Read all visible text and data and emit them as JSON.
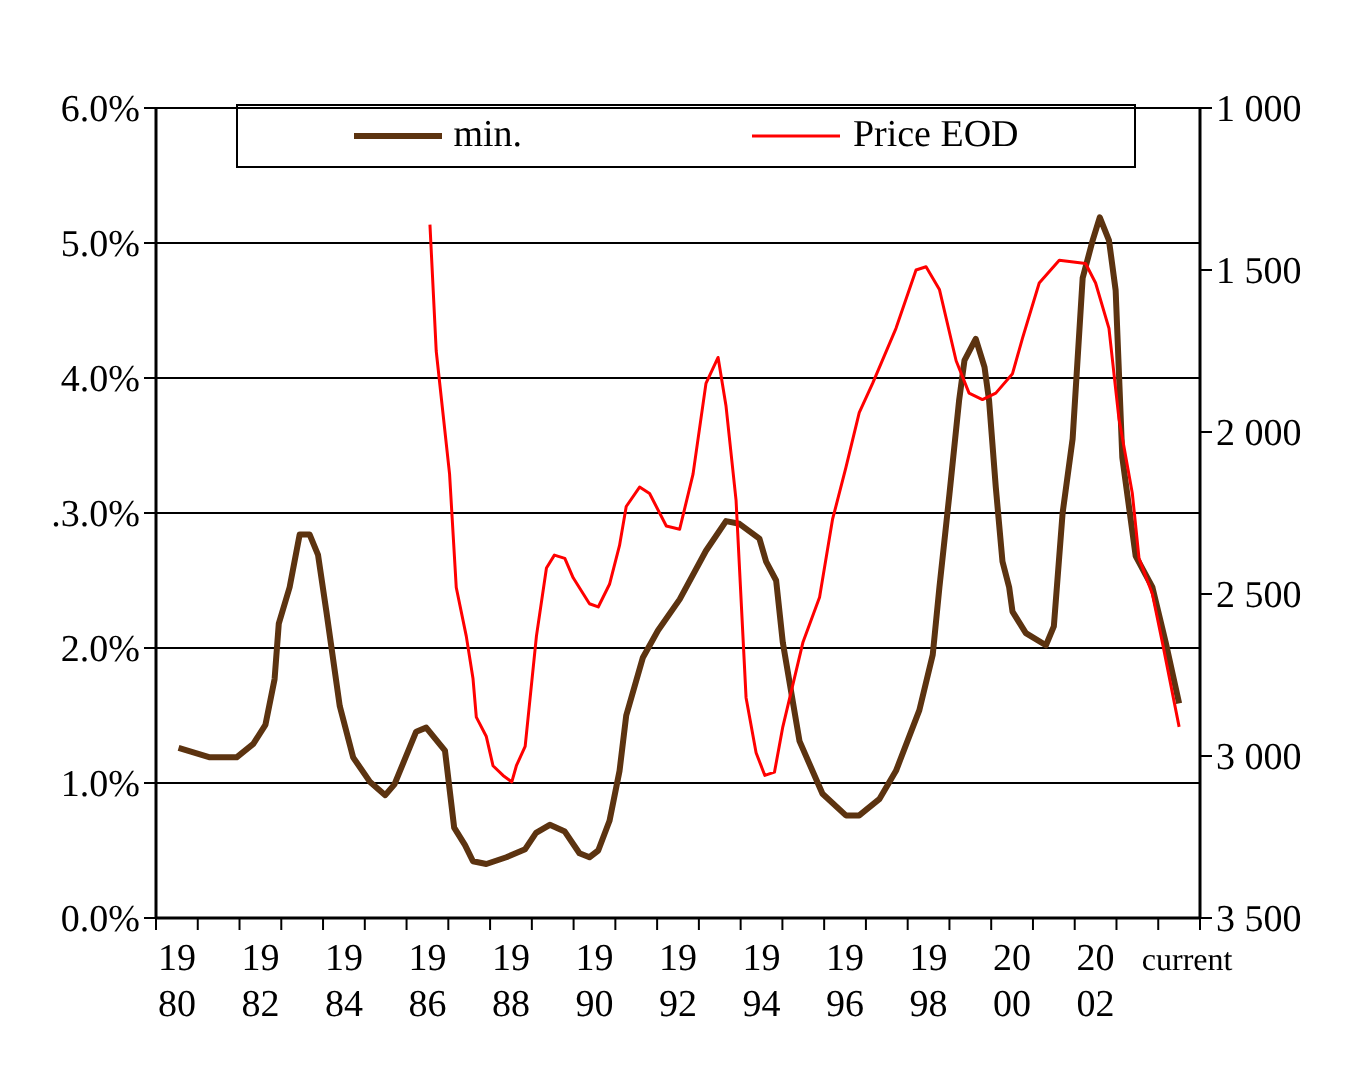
{
  "chart_data": {
    "type": "line",
    "xlim": [
      1979.5,
      2004.5
    ],
    "xticks": [
      {
        "value": 1979.5,
        "label": null
      },
      {
        "value": 1980.5,
        "label": null
      },
      {
        "value": 1981.5,
        "label": null
      },
      {
        "value": 1982.5,
        "label": null
      },
      {
        "value": 1983.5,
        "label": null
      },
      {
        "value": 1984.5,
        "label": null
      },
      {
        "value": 1985.5,
        "label": null
      },
      {
        "value": 1986.5,
        "label": null
      },
      {
        "value": 1987.5,
        "label": null
      },
      {
        "value": 1988.5,
        "label": null
      },
      {
        "value": 1989.5,
        "label": null
      },
      {
        "value": 1990.5,
        "label": null
      },
      {
        "value": 1991.5,
        "label": null
      },
      {
        "value": 1992.5,
        "label": null
      },
      {
        "value": 1993.5,
        "label": null
      },
      {
        "value": 1994.5,
        "label": null
      },
      {
        "value": 1995.5,
        "label": null
      },
      {
        "value": 1996.5,
        "label": null
      },
      {
        "value": 1997.5,
        "label": null
      },
      {
        "value": 1998.5,
        "label": null
      },
      {
        "value": 1999.5,
        "label": null
      },
      {
        "value": 2000.5,
        "label": null
      },
      {
        "value": 2001.5,
        "label": null
      },
      {
        "value": 2002.5,
        "label": null
      },
      {
        "value": 2003.5,
        "label": null
      },
      {
        "value": 2004.5,
        "label": null
      },
      1980,
      1982,
      1984,
      1986,
      1988,
      1990,
      1992,
      1994,
      1996,
      1998,
      2000,
      2002,
      {
        "value": 2004,
        "label": "current"
      }
    ],
    "ylim": [
      0,
      6
    ],
    "yticks": [
      {
        "value": 0,
        "label": "0.0%"
      },
      {
        "value": 1,
        "label": "1.0%"
      },
      {
        "value": 2,
        "label": "2.0%"
      },
      {
        "value": 3,
        "label": ".3.0%"
      },
      {
        "value": 4,
        "label": "4.0%"
      },
      {
        "value": 5,
        "label": "5.0%"
      },
      {
        "value": 6,
        "label": "6.0%"
      }
    ],
    "y2lim": [
      3500,
      1000
    ],
    "y2ticks": [
      {
        "value": 1000,
        "label": "1 000"
      },
      {
        "value": 1500,
        "label": "1 500"
      },
      {
        "value": 2000,
        "label": "2 000"
      },
      {
        "value": 2500,
        "label": "2 500"
      },
      {
        "value": 3000,
        "label": "3 000"
      },
      {
        "value": 3500,
        "label": "3 500"
      }
    ],
    "grid": "y",
    "legend": "top",
    "marker": "none",
    "series": [
      {
        "name": "min.",
        "color": "#5c3310",
        "x": [
          1980.04,
          1980.79,
          1981.43,
          1981.83,
          1982.12,
          1982.34,
          1982.44,
          1982.7,
          1982.94,
          1983.18,
          1983.38,
          1983.58,
          1983.9,
          1984.22,
          1984.62,
          1984.99,
          1985.21,
          1985.73,
          1985.97,
          1986.42,
          1986.64,
          1986.9,
          1987.09,
          1987.41,
          1987.89,
          1988.34,
          1988.6,
          1988.93,
          1989.29,
          1989.64,
          1989.88,
          1990.09,
          1990.36,
          1990.6,
          1990.76,
          1991.16,
          1991.52,
          1992.04,
          1992.67,
          1993.15,
          1993.47,
          1993.95,
          1994.11,
          1994.35,
          1994.51,
          1994.91,
          1995.46,
          1996.02,
          1996.34,
          1996.82,
          1997.22,
          1997.78,
          1998.1,
          1998.26,
          1998.5,
          1998.73,
          1998.86,
          1999.13,
          1999.34,
          1999.45,
          1999.61,
          1999.77,
          1999.93,
          2000.01,
          2000.33,
          2000.81,
          2001.0,
          2001.21,
          2001.45,
          2001.69,
          2001.93,
          2002.1,
          2002.32,
          2002.48,
          2002.64,
          2002.96,
          2003.36,
          2003.68,
          2004.0
        ],
        "values": [
          1.26,
          1.19,
          1.19,
          1.29,
          1.43,
          1.77,
          2.18,
          2.45,
          2.84,
          2.84,
          2.69,
          2.27,
          1.57,
          1.19,
          1.01,
          0.91,
          0.99,
          1.38,
          1.41,
          1.24,
          0.67,
          0.54,
          0.42,
          0.4,
          0.45,
          0.51,
          0.63,
          0.69,
          0.64,
          0.48,
          0.45,
          0.5,
          0.72,
          1.09,
          1.5,
          1.93,
          2.13,
          2.36,
          2.72,
          2.94,
          2.92,
          2.81,
          2.64,
          2.5,
          2.04,
          1.31,
          0.92,
          0.76,
          0.76,
          0.88,
          1.09,
          1.54,
          1.95,
          2.45,
          3.14,
          3.83,
          4.13,
          4.29,
          4.08,
          3.83,
          3.19,
          2.64,
          2.45,
          2.27,
          2.11,
          2.02,
          2.16,
          3.0,
          3.55,
          4.74,
          5.02,
          5.19,
          5.02,
          4.65,
          3.41,
          2.68,
          2.45,
          2.04,
          1.59
        ]
      },
      {
        "name": "Price EOD",
        "color": "#ff0000",
        "axis": "y2",
        "x": [
          1986.06,
          1986.21,
          1986.53,
          1986.69,
          1986.93,
          1987.09,
          1987.17,
          1987.41,
          1987.57,
          1987.81,
          1988.02,
          1988.13,
          1988.34,
          1988.61,
          1988.85,
          1989.04,
          1989.29,
          1989.49,
          1989.88,
          1990.09,
          1990.36,
          1990.6,
          1990.76,
          1991.08,
          1991.32,
          1991.72,
          1992.04,
          1992.36,
          1992.67,
          1992.96,
          1993.15,
          1993.39,
          1993.63,
          1993.87,
          1994.08,
          1994.31,
          1994.51,
          1994.99,
          1995.39,
          1995.7,
          1996.02,
          1996.34,
          1996.66,
          1997.22,
          1997.7,
          1997.94,
          1998.26,
          1998.66,
          1998.97,
          1999.29,
          1999.61,
          2000.01,
          2000.25,
          2000.65,
          2001.13,
          2001.76,
          2002.0,
          2002.32,
          2002.56,
          2002.88,
          2003.04,
          2003.36,
          2003.6,
          2004.0
        ],
        "values": [
          1360,
          1750,
          2130,
          2480,
          2630,
          2760,
          2880,
          2940,
          3030,
          3060,
          3080,
          3030,
          2970,
          2630,
          2420,
          2380,
          2390,
          2450,
          2530,
          2540,
          2470,
          2350,
          2230,
          2170,
          2190,
          2290,
          2300,
          2130,
          1850,
          1770,
          1920,
          2210,
          2820,
          2990,
          3060,
          3050,
          2910,
          2650,
          2510,
          2270,
          2110,
          1940,
          1850,
          1680,
          1500,
          1490,
          1560,
          1780,
          1880,
          1900,
          1880,
          1820,
          1710,
          1540,
          1470,
          1480,
          1540,
          1680,
          1960,
          2190,
          2390,
          2500,
          2650,
          2910
        ]
      }
    ]
  }
}
